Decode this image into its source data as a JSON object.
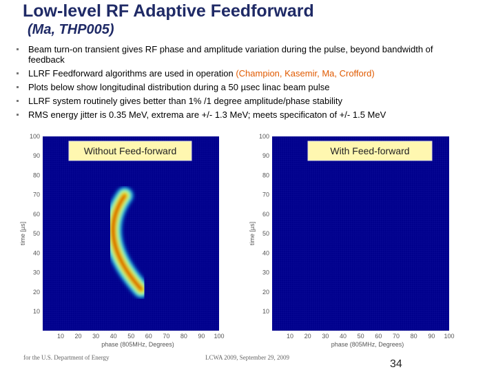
{
  "header": {
    "title": "Low-level RF Adaptive Feedforward",
    "subtitle": "(Ma, THP005)"
  },
  "bullets": [
    {
      "text": "Beam turn-on transient gives RF phase and amplitude variation during the pulse, beyond bandwidth of feedback"
    },
    {
      "text": "LLRF Feedforward algorithms are used in operation ",
      "highlight": "(Champion, Kasemir, Ma, Crofford)"
    },
    {
      "text": "Plots below show longitudinal distribution during a 50 µsec linac beam pulse"
    },
    {
      "text": "LLRF system routinely gives better than 1% /1 degree amplitude/phase stability"
    },
    {
      "text": "RMS energy jitter is 0.35 MeV, extrema are +/- 1.3 MeV; meets specificaton of +/- 1.5 MeV"
    }
  ],
  "plots": [
    {
      "label": "Without Feed-forward",
      "y_label": "time [µs]",
      "x_label": "phase (805MHz, Degrees)",
      "xticks": [
        10,
        20,
        30,
        40,
        50,
        60,
        70,
        80,
        90,
        100
      ],
      "yticks": [
        10,
        20,
        30,
        40,
        50,
        60,
        70,
        80,
        90,
        100
      ]
    },
    {
      "label": "With Feed-forward",
      "y_label": "time [µs]",
      "x_label": "phase (805MHz, Degrees)",
      "xticks": [
        10,
        20,
        30,
        40,
        50,
        60,
        70,
        80,
        90,
        100
      ],
      "yticks": [
        10,
        20,
        30,
        40,
        50,
        60,
        70,
        80,
        90,
        100
      ]
    }
  ],
  "footer": {
    "left": "for the U.S. Department of Energy",
    "center": "LCWA 2009, September 29, 2009",
    "page": "34"
  }
}
